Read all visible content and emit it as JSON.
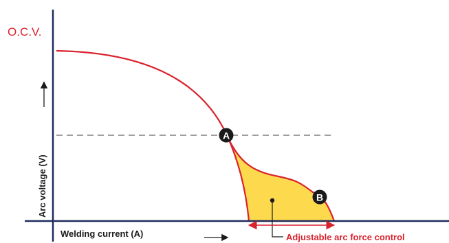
{
  "diagram": {
    "ocv_label": "O.C.V.",
    "y_axis_label": "Arc voltage (V)",
    "x_axis_label": "Welding current (A)",
    "point_a_label": "A",
    "point_b_label": "B",
    "range_label": "Adjustable arc force control",
    "colors": {
      "axis": "#1f2a5c",
      "curve": "#d9232e",
      "fill": "#fcd94d",
      "marker": "#1a1a1a",
      "dashed": "#666666",
      "label_red": "#d9232e"
    }
  }
}
